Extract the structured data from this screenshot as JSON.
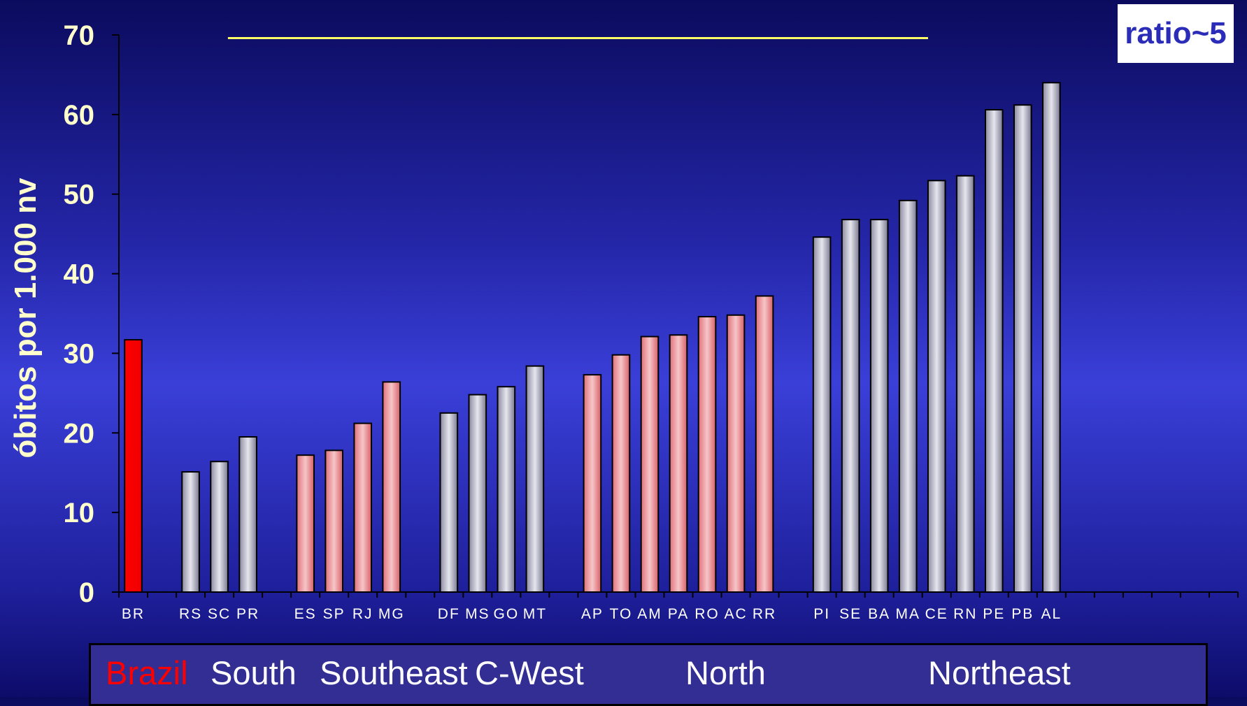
{
  "badge": {
    "text": "ratio~5"
  },
  "colors": {
    "brazil_bar": "#ff0000",
    "gray_bar": "#c8c8d2",
    "pink_bar": "#f0a0a6",
    "axis_text": "#ffffcc",
    "reference_line": "#ffff66",
    "brazil_label": "#ff0000",
    "region_label": "#ffffff"
  },
  "regions": [
    {
      "label": "Brazil",
      "color": "#ff0000"
    },
    {
      "label": "South",
      "color": "#ffffff"
    },
    {
      "label": "Southeast",
      "color": "#ffffff"
    },
    {
      "label": "C-West",
      "color": "#ffffff"
    },
    {
      "label": "North",
      "color": "#ffffff"
    },
    {
      "label": "Northeast",
      "color": "#ffffff"
    }
  ],
  "chart_data": {
    "type": "bar",
    "title": "",
    "xlabel": "",
    "ylabel": "óbitos por 1.000 nv",
    "ylim": [
      0,
      70
    ],
    "yticks": [
      0,
      10,
      20,
      30,
      40,
      50,
      60,
      70
    ],
    "grid": false,
    "reference_line": {
      "y": 69.6
    },
    "categories": [
      "BR",
      "RS",
      "SC",
      "PR",
      "ES",
      "SP",
      "RJ",
      "MG",
      "DF",
      "MS",
      "GO",
      "MT",
      "AP",
      "TO",
      "AM",
      "PA",
      "RO",
      "AC",
      "RR",
      "PI",
      "SE",
      "BA",
      "MA",
      "CE",
      "RN",
      "PE",
      "PB",
      "AL"
    ],
    "values": [
      31.7,
      15.1,
      16.4,
      19.5,
      17.2,
      17.8,
      21.2,
      26.4,
      22.5,
      24.8,
      25.8,
      28.4,
      27.3,
      29.8,
      32.1,
      32.3,
      34.6,
      34.8,
      37.2,
      44.6,
      46.8,
      46.8,
      49.2,
      51.7,
      52.3,
      60.6,
      61.2,
      64.0
    ],
    "bar_style": [
      "brazil",
      "gray",
      "gray",
      "gray",
      "pink",
      "pink",
      "pink",
      "pink",
      "gray",
      "gray",
      "gray",
      "gray",
      "pink",
      "pink",
      "pink",
      "pink",
      "pink",
      "pink",
      "pink",
      "gray",
      "gray",
      "gray",
      "gray",
      "gray",
      "gray",
      "gray",
      "gray",
      "gray"
    ],
    "groups": [
      {
        "name": "Brazil",
        "categories": [
          "BR"
        ]
      },
      {
        "name": "South",
        "categories": [
          "RS",
          "SC",
          "PR"
        ]
      },
      {
        "name": "Southeast",
        "categories": [
          "ES",
          "SP",
          "RJ",
          "MG"
        ]
      },
      {
        "name": "C-West",
        "categories": [
          "DF",
          "MS",
          "GO",
          "MT"
        ]
      },
      {
        "name": "North",
        "categories": [
          "AP",
          "TO",
          "AM",
          "PA",
          "RO",
          "AC",
          "RR"
        ]
      },
      {
        "name": "Northeast",
        "categories": [
          "PI",
          "SE",
          "BA",
          "MA",
          "CE",
          "RN",
          "PE",
          "PB",
          "AL"
        ]
      }
    ]
  }
}
